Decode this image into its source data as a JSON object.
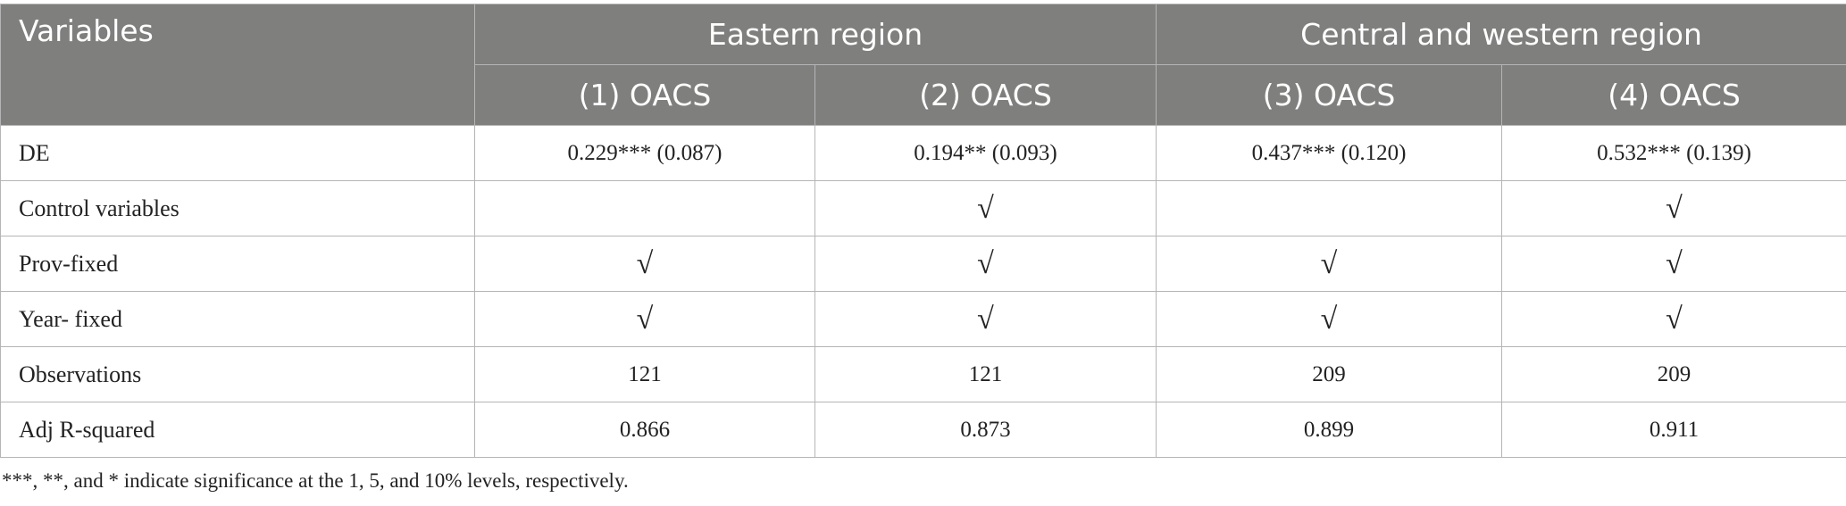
{
  "header": {
    "title": "Variables",
    "groups": [
      "Eastern region",
      "Central and western region"
    ],
    "columns": [
      "(1) OACS",
      "(2) OACS",
      "(3) OACS",
      "(4) OACS"
    ]
  },
  "table": {
    "rows": [
      [
        "DE",
        "0.229*** (0.087)",
        "0.194** (0.093)",
        "0.437*** (0.120)",
        "0.532*** (0.139)"
      ],
      [
        "Control variables",
        null,
        "√",
        null,
        "√"
      ],
      [
        "Prov-fixed",
        "√",
        "√",
        "√",
        "√"
      ],
      [
        "Year- fixed",
        "√",
        "√",
        "√",
        "√"
      ],
      [
        "Observations",
        "121",
        "121",
        "209",
        "209"
      ],
      [
        "Adj R-squared",
        "0.866",
        "0.873",
        "0.899",
        "0.911"
      ]
    ]
  },
  "footnote": "***, **, and * indicate significance at the 1, 5, and 10% levels, respectively."
}
